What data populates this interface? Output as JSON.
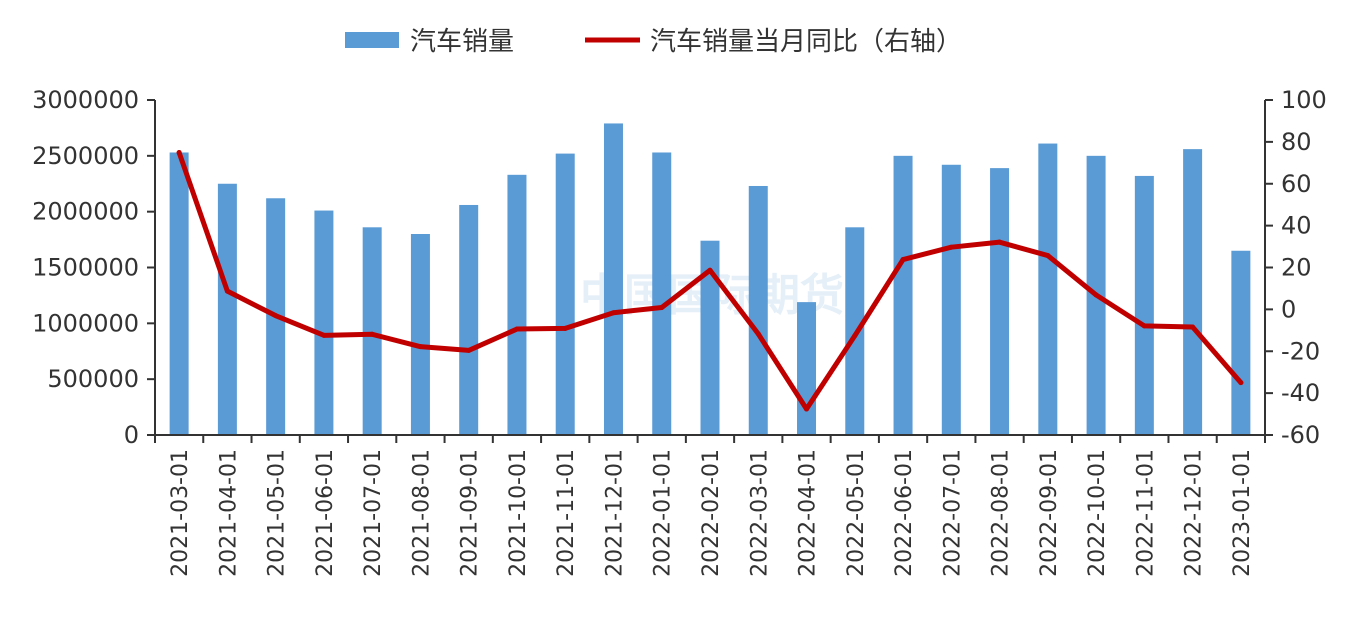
{
  "chart_data": {
    "type": "bar",
    "categories": [
      "2021-03-01",
      "2021-04-01",
      "2021-05-01",
      "2021-06-01",
      "2021-07-01",
      "2021-08-01",
      "2021-09-01",
      "2021-10-01",
      "2021-11-01",
      "2021-12-01",
      "2022-01-01",
      "2022-02-01",
      "2022-03-01",
      "2022-04-01",
      "2022-05-01",
      "2022-06-01",
      "2022-07-01",
      "2022-08-01",
      "2022-09-01",
      "2022-10-01",
      "2022-11-01",
      "2022-12-01",
      "2023-01-01"
    ],
    "series": [
      {
        "name": "汽车销量",
        "type": "bar",
        "axis": "left",
        "color": "#5b9bd5",
        "values": [
          2530000,
          2250000,
          2120000,
          2010000,
          1860000,
          1800000,
          2060000,
          2330000,
          2520000,
          2790000,
          2530000,
          1740000,
          2230000,
          1190000,
          1860000,
          2500000,
          2420000,
          2390000,
          2610000,
          2500000,
          2320000,
          2560000,
          1650000
        ]
      },
      {
        "name": "汽车销量当月同比（右轴）",
        "type": "line",
        "axis": "right",
        "color": "#c00000",
        "values": [
          74.9,
          8.7,
          -3.0,
          -12.4,
          -11.9,
          -17.8,
          -19.6,
          -9.4,
          -9.1,
          -1.6,
          0.9,
          18.7,
          -11.7,
          -47.6,
          -12.6,
          23.8,
          29.7,
          32.1,
          25.7,
          6.9,
          -7.9,
          -8.4,
          -35.0
        ]
      }
    ],
    "y_left": {
      "min": 0,
      "max": 3000000,
      "ticks": [
        "0",
        "500000",
        "1000000",
        "1500000",
        "2000000",
        "2500000",
        "3000000"
      ]
    },
    "y_right": {
      "min": -60,
      "max": 100,
      "ticks": [
        "-60",
        "-40",
        "-20",
        "0",
        "20",
        "40",
        "60",
        "80",
        "100"
      ]
    },
    "legend": {
      "position": "top-center",
      "items": [
        "汽车销量",
        "汽车销量当月同比（右轴）"
      ]
    },
    "watermark": "中国国际期货",
    "grid": false
  }
}
